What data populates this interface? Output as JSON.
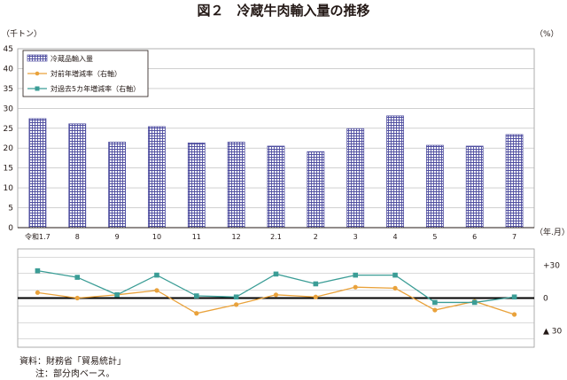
{
  "chart_data": {
    "type": "bar+line",
    "title": "図２　冷蔵牛肉輸入量の推移",
    "left_unit": "（千トン）",
    "right_unit": "（%）",
    "x_unit": "（年.月）",
    "categories": [
      "令和1.7",
      "8",
      "9",
      "10",
      "11",
      "12",
      "2.1",
      "2",
      "3",
      "4",
      "5",
      "6",
      "7"
    ],
    "bar_series": {
      "name": "冷蔵品輸入量",
      "values": [
        27.4,
        26.1,
        21.5,
        25.4,
        21.3,
        21.5,
        20.5,
        19.1,
        24.9,
        28.1,
        20.7,
        20.5,
        23.4
      ],
      "ylim": [
        0,
        45
      ],
      "yticks": [
        "0",
        "5",
        "10",
        "15",
        "20",
        "25",
        "30",
        "35",
        "40",
        "45"
      ]
    },
    "line_series": [
      {
        "name": "対前年増減率（右軸）",
        "color": "#e9a23b",
        "values": [
          5,
          0,
          3,
          7,
          -14,
          -6,
          3,
          1,
          10,
          9,
          -11,
          -3,
          -15
        ]
      },
      {
        "name": "対過去5カ年増減率（右軸）",
        "color": "#3b9d96",
        "values": [
          25,
          19,
          3,
          21,
          2,
          1,
          22,
          13,
          21,
          21,
          -4,
          -4,
          1
        ]
      }
    ],
    "right_axis": {
      "ylim": [
        -45,
        45
      ],
      "tick_labels": [
        "+30",
        "0",
        "▲ 30"
      ],
      "tick_values": [
        30,
        0,
        -30
      ]
    },
    "grid": true,
    "legend_position": "top-left"
  },
  "notes": {
    "source": "資料：財務省「貿易統計」",
    "note": "注：部分肉ベース。"
  }
}
